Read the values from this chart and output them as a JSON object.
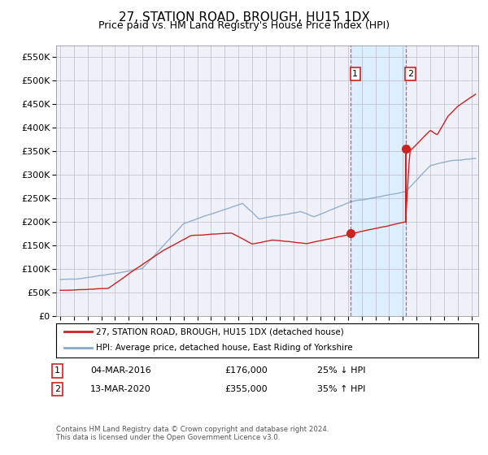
{
  "title": "27, STATION ROAD, BROUGH, HU15 1DX",
  "subtitle": "Price paid vs. HM Land Registry's House Price Index (HPI)",
  "footnote": "Contains HM Land Registry data © Crown copyright and database right 2024.\nThis data is licensed under the Open Government Licence v3.0.",
  "legend_line1": "27, STATION ROAD, BROUGH, HU15 1DX (detached house)",
  "legend_line2": "HPI: Average price, detached house, East Riding of Yorkshire",
  "transaction1_label": "04-MAR-2016",
  "transaction1_price": "£176,000",
  "transaction1_hpi": "25% ↓ HPI",
  "transaction1_year": 2016.17,
  "transaction1_value": 176000,
  "transaction2_label": "13-MAR-2020",
  "transaction2_price": "£355,000",
  "transaction2_hpi": "35% ↑ HPI",
  "transaction2_year": 2020.2,
  "transaction2_value": 355000,
  "ylim": [
    0,
    575000
  ],
  "yticks": [
    0,
    50000,
    100000,
    150000,
    200000,
    250000,
    300000,
    350000,
    400000,
    450000,
    500000,
    550000
  ],
  "xlim_start": 1994.7,
  "xlim_end": 2025.5,
  "hpi_color": "#88aacc",
  "price_color": "#cc2222",
  "shading_color": "#ddeeff",
  "grid_color": "#bbbbcc",
  "background_color": "#f0f0f8",
  "title_fontsize": 11,
  "subtitle_fontsize": 9,
  "axis_fontsize": 8
}
